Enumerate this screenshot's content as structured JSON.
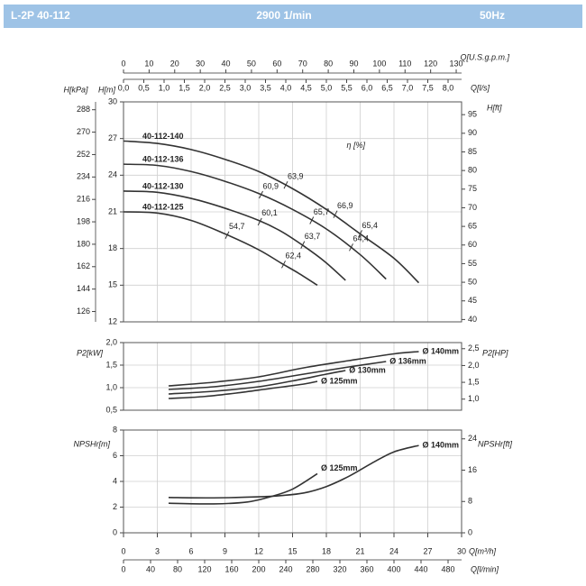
{
  "header": {
    "model": "L-2P 40-112",
    "speed": "2900 1/min",
    "frequency": "50Hz"
  },
  "chart_data": [
    {
      "type": "line",
      "ylabel": "H[m]",
      "y2label": "H[ft]",
      "grid": true,
      "xlim": [
        0,
        30
      ],
      "xticks": [
        0,
        3,
        6,
        9,
        12,
        15,
        18,
        21,
        24,
        27,
        30
      ],
      "ylim": [
        12,
        30
      ],
      "yticks": [
        12,
        15,
        18,
        21,
        24,
        27,
        30
      ],
      "y2lim": [
        39.37,
        98.43
      ],
      "y2ticks": [
        40,
        45,
        50,
        55,
        60,
        65,
        70,
        75,
        80,
        85,
        90,
        95
      ],
      "left_axes": [
        {
          "label": "H[kPa]",
          "lim": [
            117.7,
            294.3
          ],
          "ticks": [
            126,
            144,
            162,
            180,
            198,
            216,
            234,
            252,
            270,
            288
          ]
        }
      ],
      "top_axes": [
        {
          "label": "Q[U.S.g.p.m.]",
          "lim": [
            0,
            132.1
          ],
          "ticks": [
            0,
            10,
            20,
            30,
            40,
            50,
            60,
            70,
            80,
            90,
            100,
            110,
            120,
            130
          ]
        },
        {
          "label": "Q[l/s]",
          "lim": [
            0,
            8.333
          ],
          "ticks": [
            {
              "value": 0,
              "label": "0,0"
            },
            {
              "value": 0.5,
              "label": "0,5"
            },
            {
              "value": 1,
              "label": "1,0"
            },
            {
              "value": 1.5,
              "label": "1,5"
            },
            {
              "value": 2,
              "label": "2,0"
            },
            {
              "value": 2.5,
              "label": "2,5"
            },
            {
              "value": 3,
              "label": "3,0"
            },
            {
              "value": 3.5,
              "label": "3,5"
            },
            {
              "value": 4,
              "label": "4,0"
            },
            {
              "value": 4.5,
              "label": "4,5"
            },
            {
              "value": 5,
              "label": "5,0"
            },
            {
              "value": 5.5,
              "label": "5,5"
            },
            {
              "value": 6,
              "label": "6,0"
            },
            {
              "value": 6.5,
              "label": "6,5"
            },
            {
              "value": 7,
              "label": "7,0"
            },
            {
              "value": 7.5,
              "label": "7,5"
            },
            {
              "value": 8,
              "label": "8,0"
            }
          ]
        }
      ],
      "series": [
        {
          "name": "40-112-140",
          "color": "#333333",
          "x": [
            0,
            3,
            6,
            9,
            12,
            15,
            18,
            21,
            24,
            26.2
          ],
          "values": [
            26.8,
            26.6,
            26.1,
            25.3,
            24.3,
            22.9,
            21.2,
            19.2,
            17.2,
            15.2
          ]
        },
        {
          "name": "40-112-136",
          "color": "#333333",
          "x": [
            0,
            3,
            6,
            9,
            12,
            15,
            18,
            21,
            23.3
          ],
          "values": [
            24.9,
            24.8,
            24.3,
            23.5,
            22.5,
            21.2,
            19.6,
            17.5,
            15.5
          ]
        },
        {
          "name": "40-112-130",
          "color": "#333333",
          "x": [
            0,
            3,
            6,
            9,
            12,
            14,
            16,
            17.9,
            19.7
          ],
          "values": [
            22.7,
            22.6,
            22.1,
            21.3,
            20.3,
            19.4,
            18.2,
            16.9,
            15.4
          ]
        },
        {
          "name": "40-112-125",
          "color": "#333333",
          "x": [
            0,
            3,
            6,
            9,
            12,
            14,
            15.5,
            17.2
          ],
          "values": [
            21.0,
            20.9,
            20.3,
            19.2,
            17.9,
            16.8,
            16.0,
            15.0
          ]
        }
      ],
      "annotations": [
        {
          "text": "η [%]",
          "x": 19.8,
          "y": 26.4
        }
      ],
      "efficiency_marks": [
        {
          "text": "54,7",
          "x": 9.2,
          "y": 19.1
        },
        {
          "text": "60,1",
          "x": 12.1,
          "y": 20.2
        },
        {
          "text": "60,9",
          "x": 12.2,
          "y": 22.4
        },
        {
          "text": "63,9",
          "x": 14.4,
          "y": 23.2
        },
        {
          "text": "65,7",
          "x": 16.7,
          "y": 20.3
        },
        {
          "text": "66,9",
          "x": 18.8,
          "y": 20.8
        },
        {
          "text": "65,4",
          "x": 21.0,
          "y": 19.2
        },
        {
          "text": "64,4",
          "x": 20.2,
          "y": 18.1
        },
        {
          "text": "63,7",
          "x": 15.9,
          "y": 18.3
        },
        {
          "text": "62,4",
          "x": 14.2,
          "y": 16.7
        }
      ]
    },
    {
      "type": "line",
      "ylabel": "P2[kW]",
      "y2label": "P2[HP]",
      "grid": true,
      "xlim": [
        0,
        30
      ],
      "xticks": [
        0,
        3,
        6,
        9,
        12,
        15,
        18,
        21,
        24,
        27,
        30
      ],
      "ylim": [
        0.5,
        2.0
      ],
      "yticks": [
        {
          "value": 0.5,
          "label": "0,5"
        },
        {
          "value": 1,
          "label": "1,0"
        },
        {
          "value": 1.5,
          "label": "1,5"
        },
        {
          "value": 2,
          "label": "2,0"
        }
      ],
      "y2lim": [
        0.6705,
        2.682
      ],
      "y2ticks": [
        {
          "value": 1,
          "label": "1,0"
        },
        {
          "value": 1.5,
          "label": "1,5"
        },
        {
          "value": 2,
          "label": "2,0"
        },
        {
          "value": 2.5,
          "label": "2,5"
        }
      ],
      "series": [
        {
          "name": "Ø 140mm",
          "color": "#333333",
          "x": [
            4,
            8,
            12,
            16,
            20,
            24,
            26.2
          ],
          "values": [
            1.04,
            1.12,
            1.24,
            1.44,
            1.6,
            1.75,
            1.8
          ]
        },
        {
          "name": "Ø 136mm",
          "color": "#333333",
          "x": [
            4,
            8,
            12,
            16,
            20,
            23.3
          ],
          "values": [
            0.96,
            1.02,
            1.14,
            1.3,
            1.46,
            1.58
          ]
        },
        {
          "name": "Ø 130mm",
          "color": "#333333",
          "x": [
            4,
            8,
            12,
            15,
            18,
            19.7
          ],
          "values": [
            0.86,
            0.92,
            1.02,
            1.15,
            1.3,
            1.38
          ]
        },
        {
          "name": "Ø 125mm",
          "color": "#333333",
          "x": [
            4,
            7,
            10,
            13,
            16,
            17.2
          ],
          "values": [
            0.76,
            0.8,
            0.88,
            0.98,
            1.08,
            1.14
          ]
        }
      ]
    },
    {
      "type": "line",
      "ylabel": "NPSHr[m]",
      "y2label": "NPSHr[ft]",
      "xlabel": "Q[m³/h]",
      "grid": true,
      "xlim": [
        0,
        30
      ],
      "xticks": [
        0,
        3,
        6,
        9,
        12,
        15,
        18,
        21,
        24,
        27,
        30
      ],
      "ylim": [
        0,
        8
      ],
      "yticks": [
        0,
        2,
        4,
        6,
        8
      ],
      "y2lim": [
        0,
        26.25
      ],
      "y2ticks": [
        0,
        8,
        16,
        24
      ],
      "bottom_axes": [
        {
          "label": "Q[l/min]",
          "lim": [
            0,
            500
          ],
          "ticks": [
            0,
            40,
            80,
            120,
            160,
            200,
            240,
            280,
            320,
            360,
            400,
            440,
            480
          ]
        }
      ],
      "series": [
        {
          "name": "Ø 140mm",
          "color": "#333333",
          "x": [
            4,
            8,
            12,
            14,
            16,
            18,
            20,
            22,
            24,
            26.2
          ],
          "values": [
            2.75,
            2.72,
            2.8,
            2.9,
            3.1,
            3.6,
            4.4,
            5.4,
            6.3,
            6.8
          ]
        },
        {
          "name": "Ø 125mm",
          "color": "#333333",
          "x": [
            4,
            8,
            11,
            13,
            15,
            17.2
          ],
          "values": [
            2.3,
            2.25,
            2.4,
            2.8,
            3.4,
            4.6
          ]
        }
      ]
    }
  ]
}
